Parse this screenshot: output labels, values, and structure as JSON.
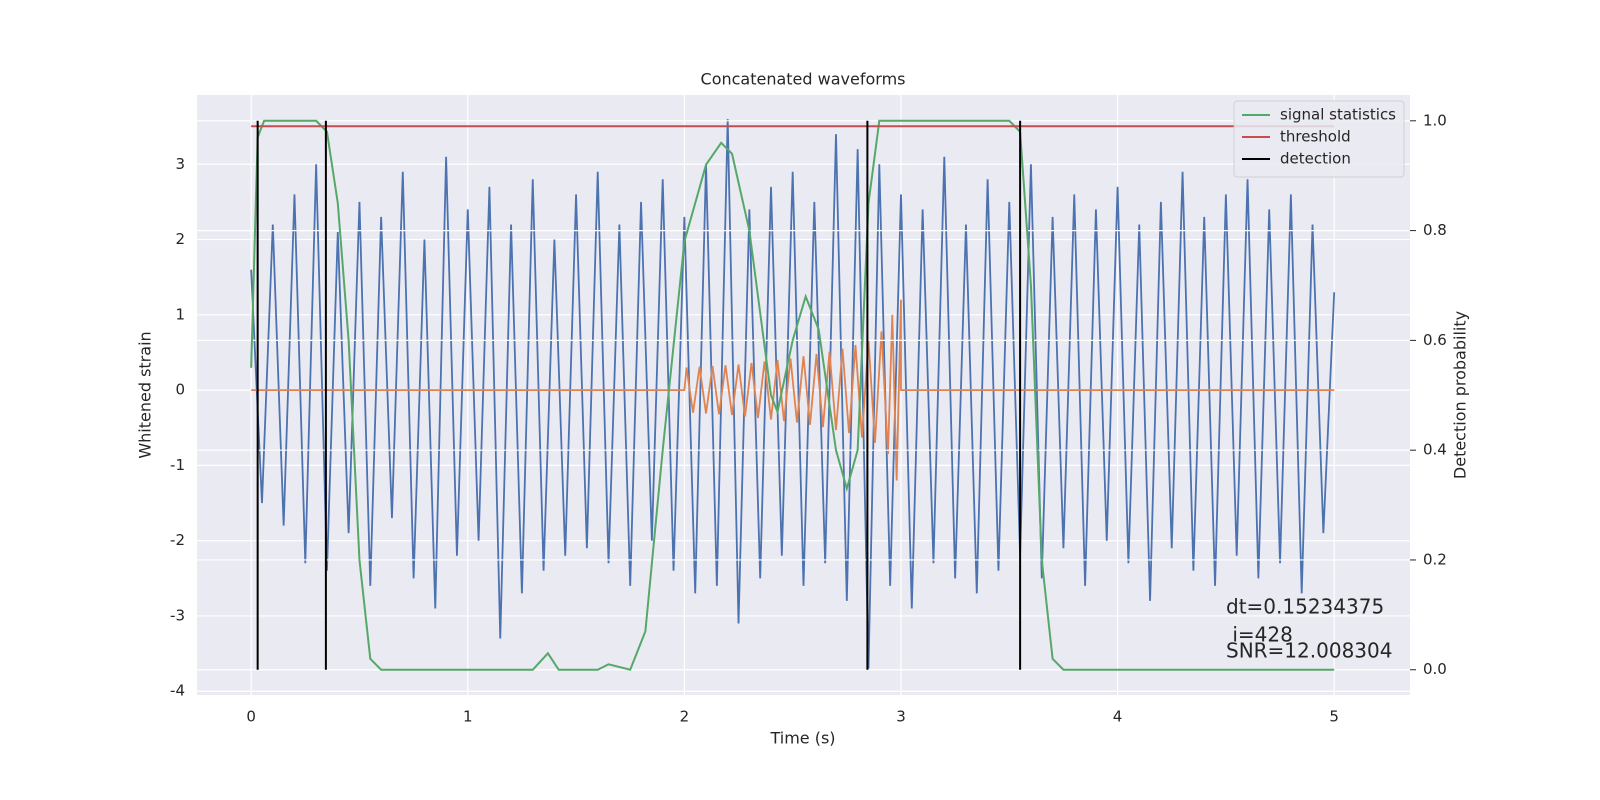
{
  "chart_data": {
    "type": "line",
    "title": "Concatenated waveforms",
    "xlabel": "Time (s)",
    "ylabel": "Whitened strain",
    "y2label": "Detection probability",
    "xlim": [
      -0.25,
      5.35
    ],
    "ylim": [
      -4.05,
      3.92
    ],
    "y2lim": [
      -0.046,
      1.047
    ],
    "xticks": [
      0,
      1,
      2,
      3,
      4,
      5
    ],
    "yticks": [
      -4,
      -3,
      -2,
      -1,
      0,
      1,
      2,
      3
    ],
    "y2ticks": [
      {
        "value": 0,
        "label": "0.0"
      },
      {
        "value": 0.2,
        "label": "0.2"
      },
      {
        "value": 0.4,
        "label": "0.4"
      },
      {
        "value": 0.6,
        "label": "0.6"
      },
      {
        "value": 0.8,
        "label": "0.8"
      },
      {
        "value": 1,
        "label": "1.0"
      }
    ],
    "grid": true,
    "legend": "upper right",
    "series": [
      {
        "color": "#4c72b0",
        "x": [
          0,
          0.05,
          0.1,
          0.15,
          0.2,
          0.25,
          0.3,
          0.35,
          0.4,
          0.45,
          0.5,
          0.55,
          0.6,
          0.65,
          0.7,
          0.75,
          0.8,
          0.85,
          0.9,
          0.95,
          1,
          1.05,
          1.1,
          1.15,
          1.2,
          1.25,
          1.3,
          1.35,
          1.4,
          1.45,
          1.5,
          1.55,
          1.6,
          1.65,
          1.7,
          1.75,
          1.8,
          1.85,
          1.9,
          1.95,
          2,
          2.05,
          2.1,
          2.15,
          2.2,
          2.25,
          2.3,
          2.35,
          2.4,
          2.45,
          2.5,
          2.55,
          2.6,
          2.65,
          2.7,
          2.75,
          2.8,
          2.85,
          2.9,
          2.95,
          3,
          3.05,
          3.1,
          3.15,
          3.2,
          3.25,
          3.3,
          3.35,
          3.4,
          3.45,
          3.5,
          3.55,
          3.6,
          3.65,
          3.7,
          3.75,
          3.8,
          3.85,
          3.9,
          3.95,
          4,
          4.05,
          4.1,
          4.15,
          4.2,
          4.25,
          4.3,
          4.35,
          4.4,
          4.45,
          4.5,
          4.55,
          4.6,
          4.65,
          4.7,
          4.75,
          4.8,
          4.85,
          4.9,
          4.95,
          5
        ],
        "values": [
          1.6,
          -1.5,
          2.2,
          -1.8,
          2.6,
          -2.3,
          3.0,
          -2.4,
          2.1,
          -1.9,
          2.5,
          -2.6,
          2.3,
          -1.7,
          2.9,
          -2.5,
          2.0,
          -2.9,
          3.1,
          -2.2,
          2.4,
          -2.0,
          2.7,
          -3.3,
          2.2,
          -2.7,
          2.8,
          -2.4,
          2.0,
          -2.2,
          2.6,
          -2.1,
          2.9,
          -2.3,
          2.2,
          -2.6,
          2.5,
          -2.0,
          2.8,
          -2.4,
          2.3,
          -2.7,
          3.0,
          -2.6,
          3.6,
          -3.1,
          2.4,
          -2.5,
          2.7,
          -2.2,
          2.9,
          -2.6,
          2.5,
          -2.3,
          3.4,
          -2.8,
          3.2,
          -3.7,
          3.0,
          -2.6,
          2.6,
          -2.9,
          2.4,
          -2.3,
          3.1,
          -2.5,
          2.2,
          -2.7,
          2.8,
          -2.4,
          2.5,
          -2.2,
          3.0,
          -2.5,
          2.3,
          -2.1,
          2.6,
          -2.6,
          2.4,
          -2.0,
          2.7,
          -2.3,
          2.2,
          -2.8,
          2.5,
          -2.1,
          2.9,
          -2.4,
          2.3,
          -2.6,
          2.6,
          -2.2,
          2.8,
          -2.5,
          2.4,
          -2.3,
          2.6,
          -2.7,
          2.2,
          -1.9,
          1.3
        ]
      },
      {
        "color": "#dd8452",
        "x": [
          0,
          2,
          2.01,
          2.04,
          2.07,
          2.1,
          2.13,
          2.16,
          2.19,
          2.22,
          2.25,
          2.28,
          2.31,
          2.34,
          2.37,
          2.4,
          2.43,
          2.46,
          2.49,
          2.52,
          2.55,
          2.58,
          2.61,
          2.64,
          2.67,
          2.7,
          2.73,
          2.76,
          2.79,
          2.82,
          2.85,
          2.88,
          2.91,
          2.94,
          2.96,
          2.98,
          3,
          3,
          5
        ],
        "values": [
          0,
          0,
          0.3,
          -0.3,
          0.31,
          -0.31,
          0.32,
          -0.32,
          0.33,
          -0.33,
          0.34,
          -0.35,
          0.36,
          -0.37,
          0.38,
          -0.39,
          0.4,
          -0.41,
          0.42,
          -0.43,
          0.45,
          -0.46,
          0.48,
          -0.49,
          0.51,
          -0.53,
          0.55,
          -0.57,
          0.6,
          -0.63,
          0.66,
          -0.7,
          0.78,
          -0.85,
          1.0,
          -1.2,
          1.2,
          0,
          0
        ]
      },
      {
        "name": "signal statistics",
        "color": "#55a868",
        "axis": "y2",
        "x": [
          0,
          0.03,
          0.06,
          0.3,
          0.35,
          0.4,
          0.45,
          0.5,
          0.55,
          0.6,
          1.3,
          1.37,
          1.42,
          1.6,
          1.65,
          1.75,
          1.82,
          1.9,
          2.0,
          2.1,
          2.17,
          2.22,
          2.3,
          2.4,
          2.43,
          2.5,
          2.56,
          2.62,
          2.7,
          2.75,
          2.8,
          2.85,
          2.9,
          3.5,
          3.55,
          3.6,
          3.65,
          3.7,
          3.75,
          5.0
        ],
        "values": [
          0.55,
          0.97,
          1.0,
          1.0,
          0.98,
          0.85,
          0.6,
          0.2,
          0.02,
          0.0,
          0.0,
          0.03,
          0.0,
          0.0,
          0.01,
          0.0,
          0.07,
          0.4,
          0.78,
          0.92,
          0.96,
          0.94,
          0.8,
          0.5,
          0.47,
          0.6,
          0.68,
          0.62,
          0.4,
          0.33,
          0.4,
          0.85,
          1.0,
          1.0,
          0.98,
          0.7,
          0.2,
          0.02,
          0.0,
          0.0
        ]
      },
      {
        "name": "threshold",
        "color": "#c44e52",
        "axis": "y2",
        "x": [
          0,
          5
        ],
        "values": [
          0.99,
          0.99
        ]
      },
      {
        "name": "detection",
        "color": "#000000",
        "axis": "y2",
        "style": "vlines",
        "x": [
          0.03,
          0.345,
          2.845,
          3.55
        ],
        "values": [
          1,
          1,
          1,
          1
        ]
      }
    ],
    "annotations": [
      "dt=0.15234375",
      " i=428",
      "SNR=12.008304"
    ]
  }
}
